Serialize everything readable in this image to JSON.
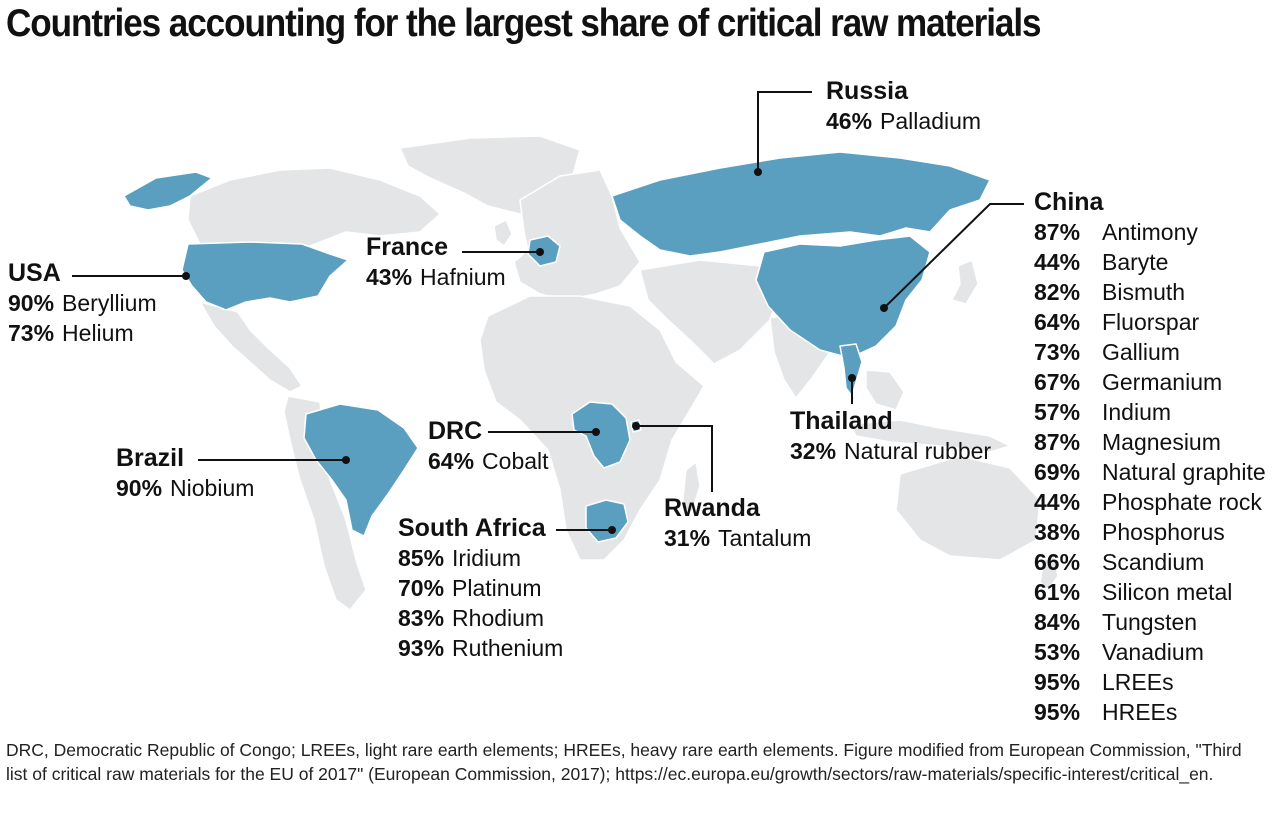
{
  "title": "Countries accounting for the largest share of critical raw materials",
  "colors": {
    "highlight": "#5a9fc0",
    "land": "#e4e5e7",
    "line": "#111111"
  },
  "countries": {
    "usa": {
      "name": "USA",
      "materials": [
        {
          "pct": "90%",
          "material": "Beryllium"
        },
        {
          "pct": "73%",
          "material": "Helium"
        }
      ]
    },
    "france": {
      "name": "France",
      "materials": [
        {
          "pct": "43%",
          "material": "Hafnium"
        }
      ]
    },
    "russia": {
      "name": "Russia",
      "materials": [
        {
          "pct": "46%",
          "material": "Palladium"
        }
      ]
    },
    "brazil": {
      "name": "Brazil",
      "materials": [
        {
          "pct": "90%",
          "material": "Niobium"
        }
      ]
    },
    "drc": {
      "name": "DRC",
      "materials": [
        {
          "pct": "64%",
          "material": "Cobalt"
        }
      ]
    },
    "rwanda": {
      "name": "Rwanda",
      "materials": [
        {
          "pct": "31%",
          "material": "Tantalum"
        }
      ]
    },
    "south_africa": {
      "name": "South Africa",
      "materials": [
        {
          "pct": "85%",
          "material": "Iridium"
        },
        {
          "pct": "70%",
          "material": "Platinum"
        },
        {
          "pct": "83%",
          "material": "Rhodium"
        },
        {
          "pct": "93%",
          "material": "Ruthenium"
        }
      ]
    },
    "thailand": {
      "name": "Thailand",
      "materials": [
        {
          "pct": "32%",
          "material": "Natural rubber"
        }
      ]
    },
    "china": {
      "name": "China",
      "materials": [
        {
          "pct": "87%",
          "material": "Antimony"
        },
        {
          "pct": "44%",
          "material": "Baryte"
        },
        {
          "pct": "82%",
          "material": "Bismuth"
        },
        {
          "pct": "64%",
          "material": "Fluorspar"
        },
        {
          "pct": "73%",
          "material": "Gallium"
        },
        {
          "pct": "67%",
          "material": "Germanium"
        },
        {
          "pct": "57%",
          "material": "Indium"
        },
        {
          "pct": "87%",
          "material": "Magnesium"
        },
        {
          "pct": "69%",
          "material": "Natural graphite"
        },
        {
          "pct": "44%",
          "material": "Phosphate rock"
        },
        {
          "pct": "38%",
          "material": "Phosphorus"
        },
        {
          "pct": "66%",
          "material": "Scandium"
        },
        {
          "pct": "61%",
          "material": "Silicon metal"
        },
        {
          "pct": "84%",
          "material": "Tungsten"
        },
        {
          "pct": "53%",
          "material": "Vanadium"
        },
        {
          "pct": "95%",
          "material": "LREEs"
        },
        {
          "pct": "95%",
          "material": "HREEs"
        }
      ]
    }
  },
  "footnote": "DRC, Democratic Republic of Congo; LREEs, light rare earth elements; HREEs, heavy rare earth elements. Figure modified from European Commission, \"Third list of critical raw materials for the EU of 2017\" (European Commission, 2017); https://ec.europa.eu/growth/sectors/raw-materials/specific-interest/critical_en."
}
